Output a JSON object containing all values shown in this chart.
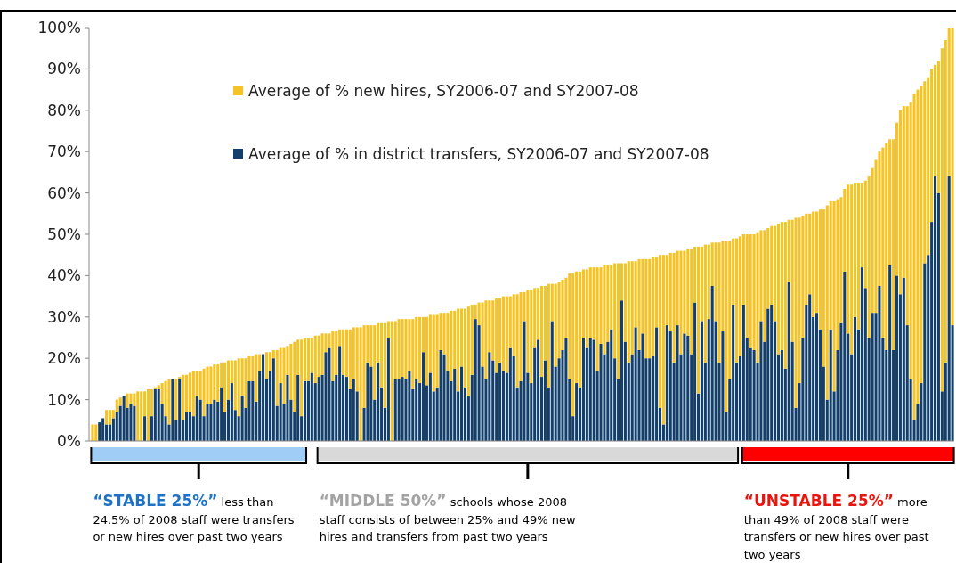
{
  "chart_data": {
    "type": "bar",
    "stacked": true,
    "legend": "top left",
    "grid": false,
    "ylim": [
      0,
      100
    ],
    "yticks": [
      {
        "value": 0,
        "label": "0%"
      },
      {
        "value": 10,
        "label": "10%"
      },
      {
        "value": 20,
        "label": "20%"
      },
      {
        "value": 30,
        "label": "30%"
      },
      {
        "value": 40,
        "label": "40%"
      },
      {
        "value": 50,
        "label": "50%"
      },
      {
        "value": 60,
        "label": "60%"
      },
      {
        "value": 70,
        "label": "70%"
      },
      {
        "value": 80,
        "label": "80%"
      },
      {
        "value": 90,
        "label": "90%"
      },
      {
        "value": 100,
        "label": "100%"
      }
    ],
    "categories": [
      null,
      null,
      null,
      null,
      null,
      null,
      null,
      null,
      null,
      null,
      null,
      null,
      null,
      null,
      null,
      null,
      null,
      null,
      null,
      null,
      null,
      null,
      null,
      null,
      null,
      null,
      null,
      null,
      null,
      null,
      null,
      null,
      null,
      null,
      null,
      null,
      null,
      null,
      null,
      null,
      null,
      null,
      null,
      null,
      null,
      null,
      null,
      null,
      null,
      null,
      null,
      null,
      null,
      null,
      null,
      null,
      null,
      null,
      null,
      null,
      null,
      null,
      null,
      null,
      null,
      null,
      null,
      null,
      null,
      null,
      null,
      null,
      null,
      null,
      null,
      null,
      null,
      null,
      null,
      null,
      null,
      null,
      null,
      null,
      null,
      null,
      null,
      null,
      null,
      null,
      null,
      null,
      null,
      null,
      null,
      null,
      null,
      null,
      null,
      null,
      null,
      null,
      null,
      null,
      null,
      null,
      null,
      null,
      null,
      null,
      null,
      null,
      null,
      null,
      null,
      null,
      null,
      null,
      null,
      null,
      null,
      null,
      null,
      null,
      null,
      null,
      null,
      null,
      null,
      null,
      null,
      null,
      null,
      null,
      null,
      null,
      null,
      null,
      null,
      null,
      null,
      null,
      null,
      null,
      null,
      null,
      null,
      null,
      null,
      null,
      null,
      null,
      null,
      null,
      null,
      null,
      null,
      null,
      null,
      null,
      null,
      null,
      null,
      null,
      null,
      null,
      null,
      null,
      null,
      null,
      null,
      null,
      null,
      null,
      null,
      null,
      null,
      null,
      null,
      null,
      null,
      null,
      null,
      null,
      null,
      null,
      null,
      null,
      null,
      null,
      null,
      null,
      null,
      null,
      null,
      null,
      null,
      null,
      null,
      null,
      null,
      null,
      null,
      null,
      null,
      null,
      null,
      null,
      null,
      null,
      null,
      null,
      null,
      null,
      null,
      null,
      null,
      null,
      null,
      null,
      null,
      null,
      null,
      null,
      null,
      null,
      null,
      null,
      null,
      null,
      null,
      null,
      null,
      null,
      null,
      null,
      null,
      null,
      null,
      null,
      null,
      null,
      null,
      null,
      null,
      null,
      null,
      null
    ],
    "series": [
      {
        "name": "Average of % in district transfers, SY2006-07 and SY2007-08",
        "color": "#123f6b",
        "values": [
          0,
          0,
          4.5,
          5.5,
          4,
          4,
          5.5,
          7,
          8.5,
          11,
          8,
          9,
          8.5,
          0,
          0,
          6,
          0,
          6,
          12.5,
          12.5,
          9,
          6,
          4,
          15,
          5,
          15,
          5,
          7,
          7,
          6,
          11,
          10,
          6,
          9,
          9,
          10,
          9.5,
          13,
          7,
          10,
          14,
          7.5,
          6,
          11,
          8,
          14.5,
          14.5,
          9.5,
          17,
          21,
          15,
          17,
          20,
          8.5,
          14,
          9,
          16,
          10,
          7,
          16,
          6,
          14.5,
          14.5,
          16.5,
          14,
          15.5,
          16,
          21.5,
          22.5,
          14.5,
          16,
          23,
          16,
          15.5,
          12.5,
          15,
          12,
          0,
          8,
          19,
          18,
          10,
          19,
          13,
          8,
          25,
          0,
          15,
          15,
          15.5,
          15,
          17,
          12.5,
          15,
          14,
          21.5,
          13.5,
          16.5,
          12,
          13,
          22,
          21,
          17,
          14.5,
          17.5,
          12,
          18,
          13,
          11,
          16,
          29.5,
          28,
          18,
          15,
          21.5,
          19.5,
          16.5,
          19,
          17,
          16.5,
          22.5,
          20.5,
          13,
          14.5,
          29,
          16.5,
          14,
          22.5,
          24.5,
          15.5,
          19.5,
          13,
          29,
          18,
          20,
          22,
          25,
          15,
          6,
          14,
          13,
          25,
          22.5,
          25,
          24.5,
          17,
          23.5,
          21,
          24,
          27,
          20,
          15,
          34,
          24,
          19,
          21,
          27.5,
          22,
          26,
          20,
          20,
          20.5,
          27.5,
          8,
          4,
          28,
          26.5,
          19,
          28,
          21,
          26,
          25.5,
          21,
          33.5,
          11.5,
          29,
          19,
          29.5,
          37.5,
          29,
          19,
          26.5,
          7,
          15,
          33,
          19,
          20.5,
          33,
          25,
          22.5,
          22,
          19,
          29,
          24,
          32,
          33,
          29,
          21,
          22,
          17.5,
          38.5,
          24,
          8,
          14,
          25,
          33,
          35.5,
          30,
          31,
          27,
          18,
          10,
          27,
          12,
          22,
          28.5,
          41,
          26,
          21,
          30,
          27,
          42,
          37,
          25,
          31,
          31,
          37.5,
          25,
          22,
          42.5,
          22,
          40,
          35.5,
          39.5,
          28,
          15,
          5,
          9,
          14,
          43,
          45,
          53,
          64,
          60,
          12,
          19,
          64,
          28
        ]
      },
      {
        "name": "Average of % new hires, SY2006-07 and SY2007-08",
        "color": "#f5c323",
        "values": [
          4,
          4,
          0,
          0,
          3.5,
          3.5,
          2,
          3,
          2,
          0,
          3.5,
          2.5,
          3,
          12,
          12,
          6,
          12.5,
          6.5,
          0.5,
          1,
          5,
          8.5,
          11,
          0,
          10,
          0.5,
          11,
          9,
          9.5,
          11,
          6,
          7,
          11.5,
          9,
          9,
          8.5,
          9,
          6,
          12,
          9.5,
          5.5,
          12,
          14,
          9,
          12,
          6,
          6,
          11.5,
          4,
          0,
          6.5,
          4.5,
          2,
          13.5,
          8.5,
          13.5,
          7,
          13.5,
          17,
          8.5,
          18.5,
          10.5,
          10.5,
          8.5,
          11.5,
          10,
          10,
          4.5,
          3.5,
          12,
          10.5,
          4,
          11,
          11.5,
          14.5,
          12.5,
          15.5,
          27.5,
          20,
          9,
          10,
          18,
          9.5,
          15.5,
          20.5,
          4,
          29,
          14,
          14.5,
          14,
          14.5,
          12.5,
          17,
          15,
          16,
          8.5,
          16.5,
          14,
          18.5,
          17.5,
          9,
          10,
          14,
          17,
          14,
          20,
          14,
          19,
          21.5,
          17,
          3.5,
          5.5,
          15.5,
          19,
          12.5,
          14.5,
          18,
          15.5,
          18,
          18.5,
          12.5,
          15,
          22.5,
          21.5,
          7,
          20,
          22.5,
          14.5,
          12.5,
          22,
          18,
          25,
          9,
          20,
          18.5,
          17,
          14.5,
          25.5,
          34.5,
          27,
          28,
          16.5,
          19,
          17,
          17.5,
          25,
          18.5,
          21.5,
          18.5,
          15.5,
          23,
          28,
          9,
          19,
          24.5,
          22.5,
          16,
          22,
          18,
          24,
          24,
          24,
          17,
          37,
          41,
          17,
          19,
          26.5,
          18,
          25,
          20,
          21,
          25.5,
          13.5,
          35.5,
          18,
          28.5,
          18,
          10.5,
          19,
          29,
          22,
          41.5,
          33.5,
          16,
          30,
          29,
          17,
          25,
          27.5,
          28,
          31.5,
          22,
          27,
          19.5,
          19,
          23,
          31.5,
          31,
          35.5,
          15,
          29.5,
          46,
          40,
          29.5,
          22,
          19.5,
          25.5,
          24.5,
          29,
          38,
          47,
          31,
          46,
          36.5,
          30.5,
          20,
          36,
          41,
          32.5,
          35.5,
          20.5,
          26,
          39,
          35,
          37,
          32.5,
          46,
          50,
          30.5,
          51,
          37,
          44.5,
          41.5,
          53,
          67,
          79,
          76,
          72,
          44,
          43,
          37,
          27,
          32,
          83,
          78,
          36,
          72
        ]
      }
    ],
    "annotations": [
      "“STABLE 25%”",
      "less than 24.5% of 2008 staff were transfers or new hires over past two years",
      "“MIDDLE 50%”",
      "schools whose 2008 staff consists of between 25% and 49% new hires and transfers from past two years",
      "“UNSTABLE 25%”",
      "more than 49% of 2008 staff were transfers or new hires over past two years"
    ]
  }
}
